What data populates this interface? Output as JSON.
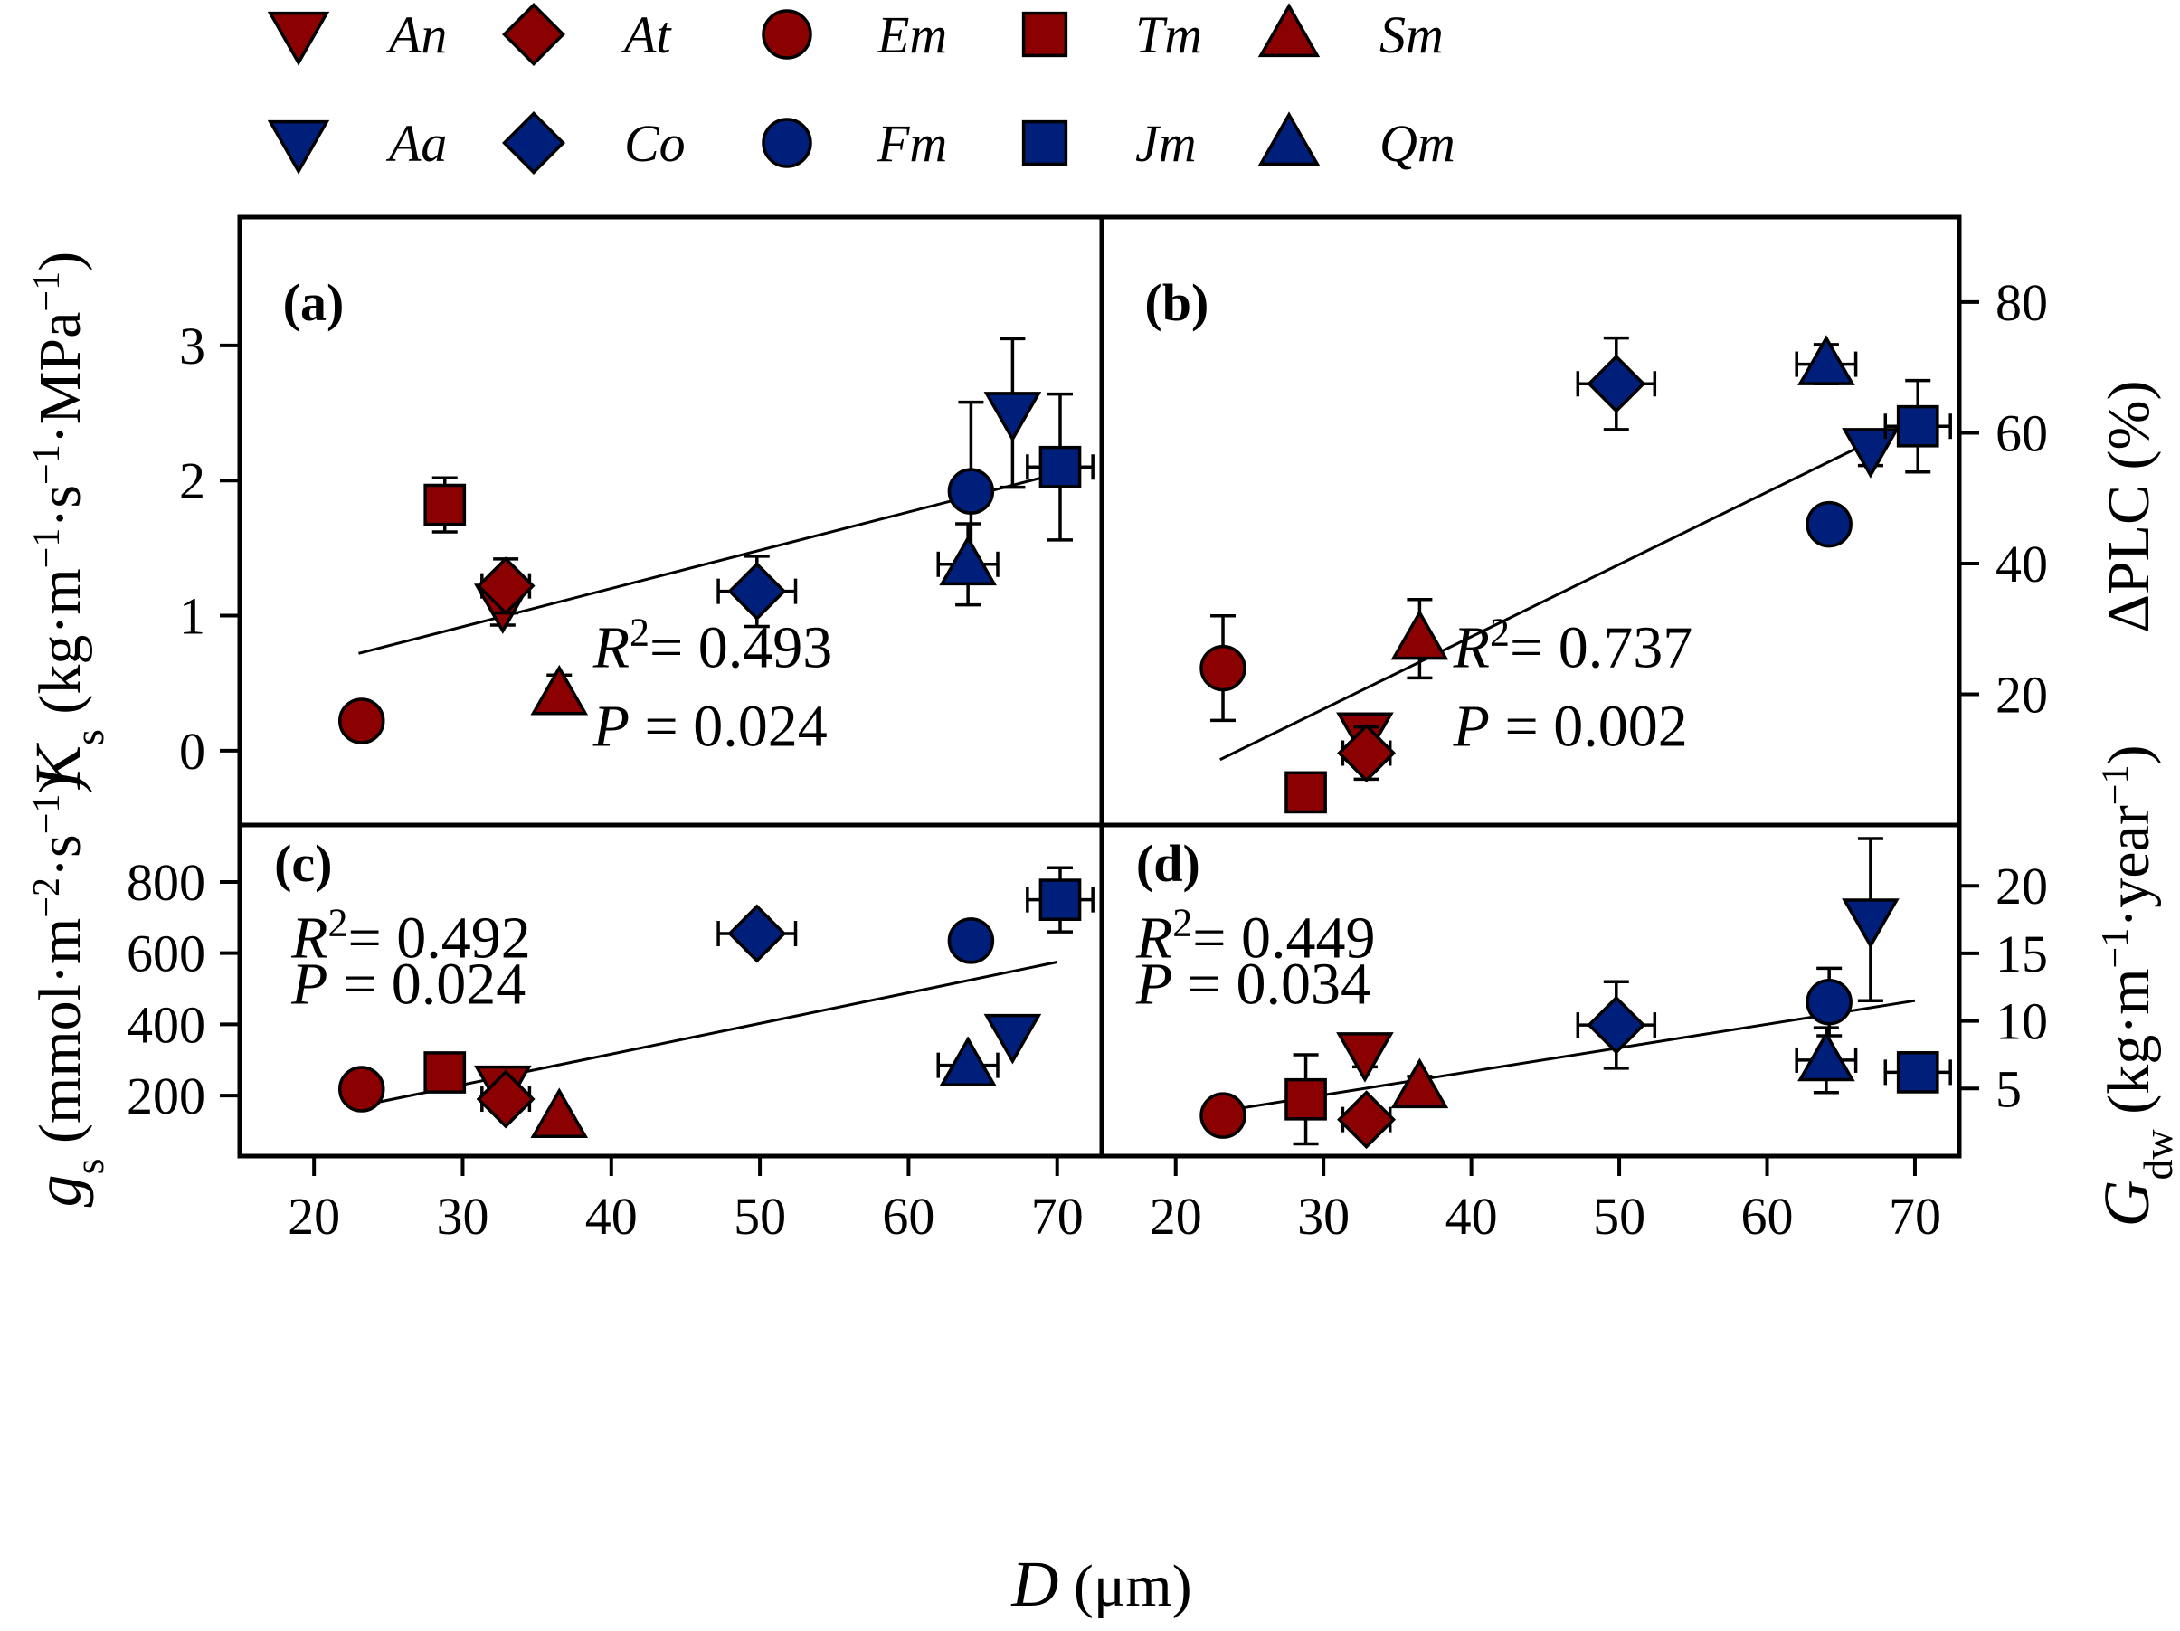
{
  "legend": {
    "entries": [
      {
        "code": "An",
        "marker": "triangle-down",
        "color": "#8b0000"
      },
      {
        "code": "At",
        "marker": "diamond",
        "color": "#8b0000"
      },
      {
        "code": "Em",
        "marker": "circle",
        "color": "#8b0000"
      },
      {
        "code": "Tm",
        "marker": "square",
        "color": "#8b0000"
      },
      {
        "code": "Sm",
        "marker": "triangle-up",
        "color": "#8b0000"
      },
      {
        "code": "Aa",
        "marker": "triangle-down",
        "color": "#001f7a"
      },
      {
        "code": "Co",
        "marker": "diamond",
        "color": "#001f7a"
      },
      {
        "code": "Fm",
        "marker": "circle",
        "color": "#001f7a"
      },
      {
        "code": "Jm",
        "marker": "square",
        "color": "#001f7a"
      },
      {
        "code": "Qm",
        "marker": "triangle-up",
        "color": "#001f7a"
      }
    ]
  },
  "colors": {
    "red_group": "#8b0000",
    "blue_group": "#001f7a",
    "axis": "#000000"
  },
  "xaxis": {
    "label_main": "D",
    "label_unit": " (μm)",
    "ticks": [
      20,
      30,
      40,
      50,
      60,
      70
    ],
    "xlim": [
      15,
      73
    ]
  },
  "chart_data": [
    {
      "panel": "a",
      "type": "scatter",
      "label": "(a)",
      "ylabel": "Ks (kg·m−1·s−1·MPa−1)",
      "ylim": [
        -0.55,
        3.95
      ],
      "yticks": [
        0,
        1,
        2,
        3
      ],
      "stats": {
        "r2": "R2= 0.493",
        "p": "P = 0.024"
      },
      "fit": {
        "x": [
          23,
          70
        ],
        "y": [
          0.72,
          2.05
        ]
      },
      "points": [
        {
          "species": "An",
          "x": 32.7,
          "y": 1.08,
          "yerr": 0.15,
          "xerr": 0
        },
        {
          "species": "At",
          "x": 32.9,
          "y": 1.22,
          "yerr": 0.2,
          "xerr": 1.6
        },
        {
          "species": "Em",
          "x": 23.2,
          "y": 0.22,
          "yerr": 0,
          "xerr": 0
        },
        {
          "species": "Tm",
          "x": 28.8,
          "y": 1.82,
          "yerr": 0.2,
          "xerr": 0
        },
        {
          "species": "Sm",
          "x": 36.5,
          "y": 0.42,
          "yerr": 0.14,
          "xerr": 0
        },
        {
          "species": "Aa",
          "x": 67.0,
          "y": 2.5,
          "yerr": 0.55,
          "xerr": 0
        },
        {
          "species": "Co",
          "x": 49.8,
          "y": 1.18,
          "yerr": 0.26,
          "xerr": 2.6
        },
        {
          "species": "Fm",
          "x": 64.2,
          "y": 1.92,
          "yerr": 0.66,
          "xerr": 0
        },
        {
          "species": "Jm",
          "x": 70.2,
          "y": 2.1,
          "yerr": 0.54,
          "xerr": 2.2
        },
        {
          "species": "Qm",
          "x": 64.0,
          "y": 1.38,
          "yerr": 0.3,
          "xerr": 2.0
        }
      ]
    },
    {
      "panel": "b",
      "type": "scatter",
      "label": "(b)",
      "ylabel": "ΔPLC (%)",
      "ylim": [
        0,
        93
      ],
      "yticks": [
        20,
        40,
        60,
        80
      ],
      "stats": {
        "r2": "R2= 0.737",
        "p": "P = 0.002"
      },
      "fit": {
        "x": [
          23,
          70
        ],
        "y": [
          10,
          62
        ]
      },
      "points": [
        {
          "species": "An",
          "x": 32.8,
          "y": 14,
          "yerr": 2,
          "xerr": 0
        },
        {
          "species": "At",
          "x": 32.9,
          "y": 11,
          "yerr": 4,
          "xerr": 1.6
        },
        {
          "species": "Em",
          "x": 23.2,
          "y": 24,
          "yerr": 8,
          "xerr": 0
        },
        {
          "species": "Tm",
          "x": 28.8,
          "y": 5,
          "yerr": 0,
          "xerr": 0
        },
        {
          "species": "Sm",
          "x": 36.5,
          "y": 28.5,
          "yerr": 6,
          "xerr": 0
        },
        {
          "species": "Aa",
          "x": 67.0,
          "y": 57.5,
          "yerr": 2.5,
          "xerr": 0
        },
        {
          "species": "Co",
          "x": 49.8,
          "y": 67.5,
          "yerr": 7,
          "xerr": 2.6
        },
        {
          "species": "Fm",
          "x": 64.2,
          "y": 46,
          "yerr": 2.5,
          "xerr": 0
        },
        {
          "species": "Jm",
          "x": 70.2,
          "y": 61,
          "yerr": 7,
          "xerr": 2.2
        },
        {
          "species": "Qm",
          "x": 64.0,
          "y": 70.5,
          "yerr": 3,
          "xerr": 2.0
        }
      ]
    },
    {
      "panel": "c",
      "type": "scatter",
      "label": "(c)",
      "ylabel": "gs (mmol·m−2·s−1)",
      "ylim": [
        30,
        960
      ],
      "yticks": [
        200,
        400,
        600,
        800
      ],
      "stats": {
        "r2": "R2= 0.492",
        "p": "P = 0.024"
      },
      "fit": {
        "x": [
          23,
          70
        ],
        "y": [
          170,
          575
        ]
      },
      "points": [
        {
          "species": "An",
          "x": 32.7,
          "y": 225,
          "yerr": 25,
          "xerr": 0
        },
        {
          "species": "At",
          "x": 32.9,
          "y": 190,
          "yerr": 30,
          "xerr": 1.6
        },
        {
          "species": "Em",
          "x": 23.2,
          "y": 218,
          "yerr": 0,
          "xerr": 0
        },
        {
          "species": "Tm",
          "x": 28.8,
          "y": 265,
          "yerr": 0,
          "xerr": 0
        },
        {
          "species": "Sm",
          "x": 36.5,
          "y": 140,
          "yerr": 10,
          "xerr": 0
        },
        {
          "species": "Aa",
          "x": 67.0,
          "y": 370,
          "yerr": 0,
          "xerr": 0
        },
        {
          "species": "Co",
          "x": 49.8,
          "y": 655,
          "yerr": 45,
          "xerr": 2.6
        },
        {
          "species": "Fm",
          "x": 64.2,
          "y": 635,
          "yerr": 0,
          "xerr": 0
        },
        {
          "species": "Jm",
          "x": 70.2,
          "y": 750,
          "yerr": 90,
          "xerr": 2.2
        },
        {
          "species": "Qm",
          "x": 64.0,
          "y": 285,
          "yerr": 0,
          "xerr": 2.0
        }
      ]
    },
    {
      "panel": "d",
      "type": "scatter",
      "label": "(d)",
      "ylabel": "Gdw (kg·m−1·year−1)",
      "ylim": [
        0,
        24.5
      ],
      "yticks": [
        5,
        10,
        15,
        20
      ],
      "stats": {
        "r2": "R2= 0.449",
        "p": "P = 0.034"
      },
      "fit": {
        "x": [
          23,
          70
        ],
        "y": [
          3.3,
          11.5
        ]
      },
      "points": [
        {
          "species": "An",
          "x": 32.8,
          "y": 7.6,
          "yerr": 1.0,
          "xerr": 0
        },
        {
          "species": "At",
          "x": 32.9,
          "y": 2.7,
          "yerr": 0.6,
          "xerr": 1.6
        },
        {
          "species": "Em",
          "x": 23.2,
          "y": 3.0,
          "yerr": 0,
          "xerr": 0
        },
        {
          "species": "Tm",
          "x": 28.8,
          "y": 4.2,
          "yerr": 3.3,
          "xerr": 0
        },
        {
          "species": "Sm",
          "x": 36.5,
          "y": 5.1,
          "yerr": 0.8,
          "xerr": 0
        },
        {
          "species": "Aa",
          "x": 67.0,
          "y": 17.5,
          "yerr": 6.0,
          "xerr": 0
        },
        {
          "species": "Co",
          "x": 49.8,
          "y": 9.7,
          "yerr": 3.2,
          "xerr": 2.6
        },
        {
          "species": "Fm",
          "x": 64.2,
          "y": 11.4,
          "yerr": 2.5,
          "xerr": 0
        },
        {
          "species": "Jm",
          "x": 70.2,
          "y": 6.2,
          "yerr": 1.1,
          "xerr": 2.2
        },
        {
          "species": "Qm",
          "x": 64.0,
          "y": 7.1,
          "yerr": 2.4,
          "xerr": 2.0
        }
      ]
    }
  ]
}
